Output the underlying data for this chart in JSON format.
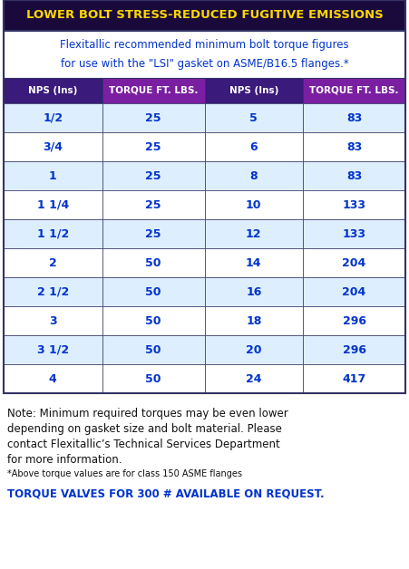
{
  "title": "LOWER BOLT STRESS-REDUCED FUGITIVE EMISSIONS",
  "subtitle_line1": "Flexitallic recommended minimum bolt torque figures",
  "subtitle_line2": "for use with the \"LSI\" gasket on ASME/B16.5 flanges.*",
  "col_headers": [
    "NPS (Ins)",
    "TORQUE FT. LBS.",
    "NPS (Ins)",
    "TORQUE FT. LBS."
  ],
  "rows": [
    [
      "1/2",
      "25",
      "5",
      "83"
    ],
    [
      "3/4",
      "25",
      "6",
      "83"
    ],
    [
      "1",
      "25",
      "8",
      "83"
    ],
    [
      "1 1/4",
      "25",
      "10",
      "133"
    ],
    [
      "1 1/2",
      "25",
      "12",
      "133"
    ],
    [
      "2",
      "50",
      "14",
      "204"
    ],
    [
      "2 1/2",
      "50",
      "16",
      "204"
    ],
    [
      "3",
      "50",
      "18",
      "296"
    ],
    [
      "3 1/2",
      "50",
      "20",
      "296"
    ],
    [
      "4",
      "50",
      "24",
      "417"
    ]
  ],
  "note_text": "Note: Minimum required torques may be even lower\ndepending on gasket size and bolt material. Please\ncontact Flexitallic’s Technical Services Department\nfor more information.",
  "footnote": "*Above torque values are for class 150 ASME flanges",
  "bottom_text": "TORQUE VALVES FOR 300 # AVAILABLE ON REQUEST.",
  "title_bg": "#1a0a3c",
  "title_fg": "#FFD700",
  "header_bg_nps": "#3a1a7a",
  "header_bg_torque": "#7b1fa2",
  "header_fg": "#FFFFFF",
  "row_odd_bg": "#ddeeff",
  "row_even_bg": "#FFFFFF",
  "row_fg": "#0033cc",
  "border_color": "#555599",
  "subtitle_fg": "#0033cc",
  "note_fg": "#111111",
  "footnote_fg": "#111111",
  "bottom_fg": "#0033cc",
  "outer_border": "#333366"
}
